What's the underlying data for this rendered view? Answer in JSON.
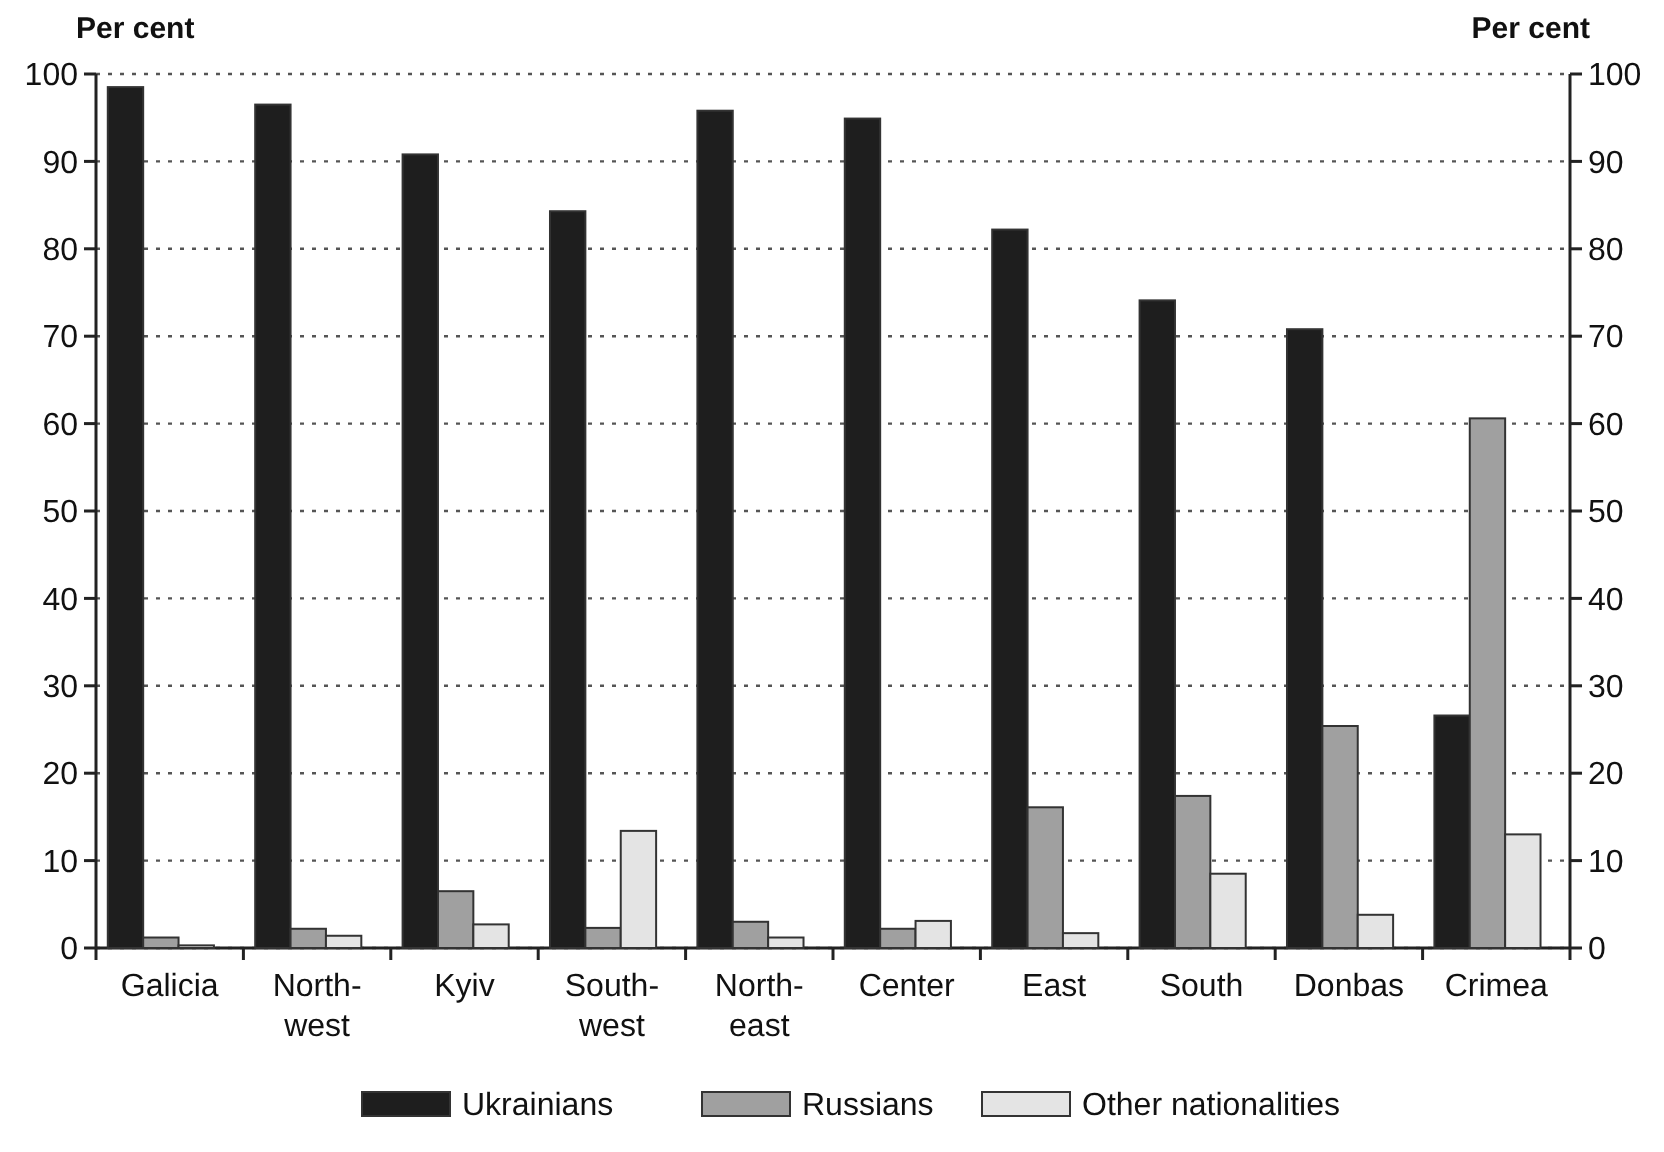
{
  "chart_data": {
    "type": "bar",
    "ylabel": "Per cent",
    "y2label": "Per cent",
    "categories": [
      "Galicia",
      "North-west",
      "Kyiv",
      "South-west",
      "North-east",
      "Center",
      "East",
      "South",
      "Donbas",
      "Crimea"
    ],
    "series": [
      {
        "name": "Ukrainians",
        "color": "#1e1e1e",
        "values": [
          98.5,
          96.5,
          90.8,
          84.3,
          95.8,
          94.9,
          82.2,
          74.1,
          70.8,
          26.6
        ]
      },
      {
        "name": "Russians",
        "color": "#a0a0a0",
        "values": [
          1.2,
          2.2,
          6.5,
          2.3,
          3.0,
          2.2,
          16.1,
          17.4,
          25.4,
          60.6
        ]
      },
      {
        "name": "Other nationalities",
        "color": "#e4e4e4",
        "values": [
          0.3,
          1.4,
          2.7,
          13.4,
          1.2,
          3.1,
          1.7,
          8.5,
          3.8,
          13.0
        ]
      }
    ],
    "ylim": [
      0,
      100
    ],
    "yticks": [
      0,
      10,
      20,
      30,
      40,
      50,
      60,
      70,
      80,
      90,
      100
    ],
    "y2lim": [
      0,
      100
    ],
    "y2ticks": [
      0,
      10,
      20,
      30,
      40,
      50,
      60,
      70,
      80,
      90,
      100
    ],
    "grid": "y",
    "legend": "bottom"
  }
}
